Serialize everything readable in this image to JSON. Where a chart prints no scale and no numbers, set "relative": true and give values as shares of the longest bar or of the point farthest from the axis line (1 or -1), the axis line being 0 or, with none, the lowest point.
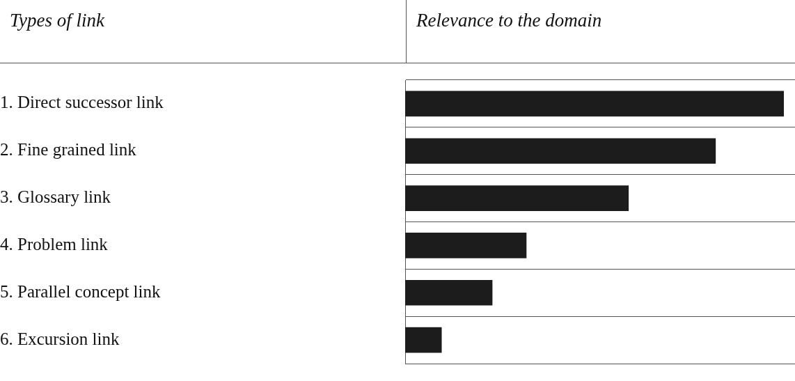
{
  "chart_data": {
    "type": "bar",
    "orientation": "horizontal",
    "relative": true,
    "ylabel": "Types of link",
    "xlabel": "Relevance to the domain",
    "categories": [
      "1. Direct successor link",
      "2. Fine grained link",
      "3. Glossary link",
      "4. Problem link",
      "5. Parallel concept link",
      "6. Excursion link"
    ],
    "values": [
      1,
      0.82,
      0.59,
      0.32,
      0.23,
      0.096
    ],
    "color": "#1c1c1c",
    "grid": "y",
    "legend": false
  }
}
